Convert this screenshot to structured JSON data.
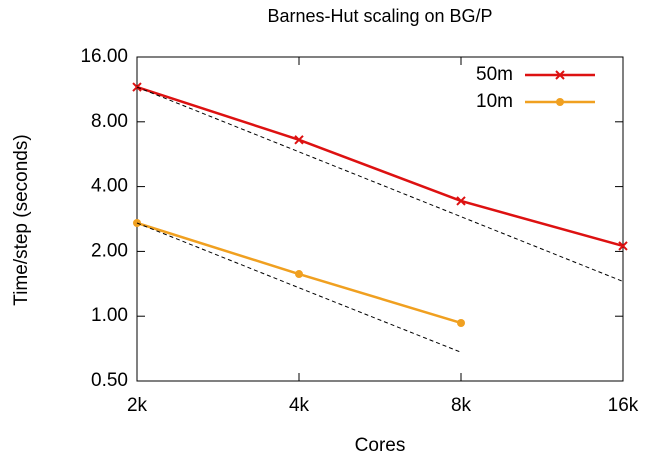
{
  "chart_data": {
    "type": "line",
    "title": "Barnes-Hut scaling on BG/P",
    "xlabel": "Cores",
    "ylabel": "Time/step (seconds)",
    "categories": [
      "2k",
      "4k",
      "8k",
      "16k"
    ],
    "series": [
      {
        "name": "50m",
        "color": "#dd1111",
        "marker": "x",
        "values": [
          11.6,
          6.6,
          3.43,
          2.12
        ]
      },
      {
        "name": "10m",
        "color": "#f0a020",
        "marker": "circle",
        "values": [
          2.71,
          1.57,
          0.93,
          null
        ]
      },
      {
        "color": "#000000",
        "dashed": true,
        "values": [
          11.6,
          5.8,
          2.9,
          1.45
        ]
      },
      {
        "color": "#000000",
        "dashed": true,
        "values": [
          2.71,
          1.355,
          0.68,
          null
        ]
      }
    ],
    "ylog": true,
    "ylim": [
      0.5,
      16
    ],
    "yticks": [
      {
        "value": 0.5,
        "label": "0.50"
      },
      {
        "value": 1,
        "label": "1.00"
      },
      {
        "value": 2,
        "label": "2.00"
      },
      {
        "value": 4,
        "label": "4.00"
      },
      {
        "value": 8,
        "label": "8.00"
      },
      {
        "value": 16,
        "label": "16.00"
      }
    ],
    "legend": "top-right"
  }
}
